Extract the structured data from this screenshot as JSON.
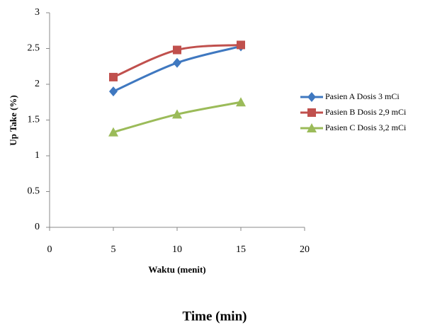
{
  "chart_data": {
    "type": "line",
    "y_label": "Up Take (%)",
    "x_label": "Waktu (menit)",
    "caption": "Time (min)",
    "x": [
      5,
      10,
      15
    ],
    "series": [
      {
        "name": "Pasien A Dosis 3 mCi",
        "color": "#3f78c0",
        "marker": "diamond",
        "values": [
          1.9,
          2.3,
          2.53
        ]
      },
      {
        "name": "Pasien B Dosis 2,9 mCi",
        "color": "#c0504d",
        "marker": "square",
        "values": [
          2.1,
          2.48,
          2.55
        ]
      },
      {
        "name": "Pasien C Dosis 3,2 mCi",
        "color": "#9bbb59",
        "marker": "triangle",
        "values": [
          1.33,
          1.58,
          1.75
        ]
      }
    ],
    "xlim": [
      0,
      20
    ],
    "xticks": [
      0,
      5,
      10,
      15,
      20
    ],
    "ylim": [
      0,
      3
    ],
    "yticks": [
      0,
      0.5,
      1,
      1.5,
      2,
      2.5,
      3
    ],
    "grid": false,
    "legend": "right"
  }
}
